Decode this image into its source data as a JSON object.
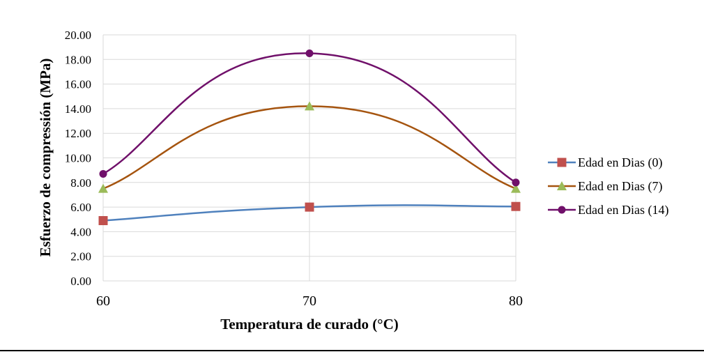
{
  "chart_data": {
    "type": "line",
    "xlabel": "Temperatura de curado (°C)",
    "ylabel": "Esfuerzo de compressión  (MPa)",
    "x": [
      60,
      70,
      80
    ],
    "xlim": [
      60,
      80
    ],
    "x_ticks": [
      "60",
      "70",
      "80"
    ],
    "ylim": [
      0,
      20
    ],
    "y_ticks": [
      "0.00",
      "2.00",
      "4.00",
      "6.00",
      "8.00",
      "10.00",
      "12.00",
      "14.00",
      "16.00",
      "18.00",
      "20.00"
    ],
    "grid": true,
    "smoothed": true,
    "legend_position": "right",
    "series": [
      {
        "name": "Edad en Dias (0)",
        "values": [
          4.9,
          6.0,
          6.05
        ],
        "color": "#4f81bd",
        "marker": "square",
        "marker_color": "#c0504d"
      },
      {
        "name": "Edad en Dias (7)",
        "values": [
          7.5,
          14.2,
          7.5
        ],
        "color": "#a5540f",
        "marker": "triangle",
        "marker_color": "#9bbb59"
      },
      {
        "name": "Edad en Dias (14)",
        "values": [
          8.7,
          18.5,
          8.0
        ],
        "color": "#70106a",
        "marker": "circle",
        "marker_color": "#70106a"
      }
    ]
  }
}
